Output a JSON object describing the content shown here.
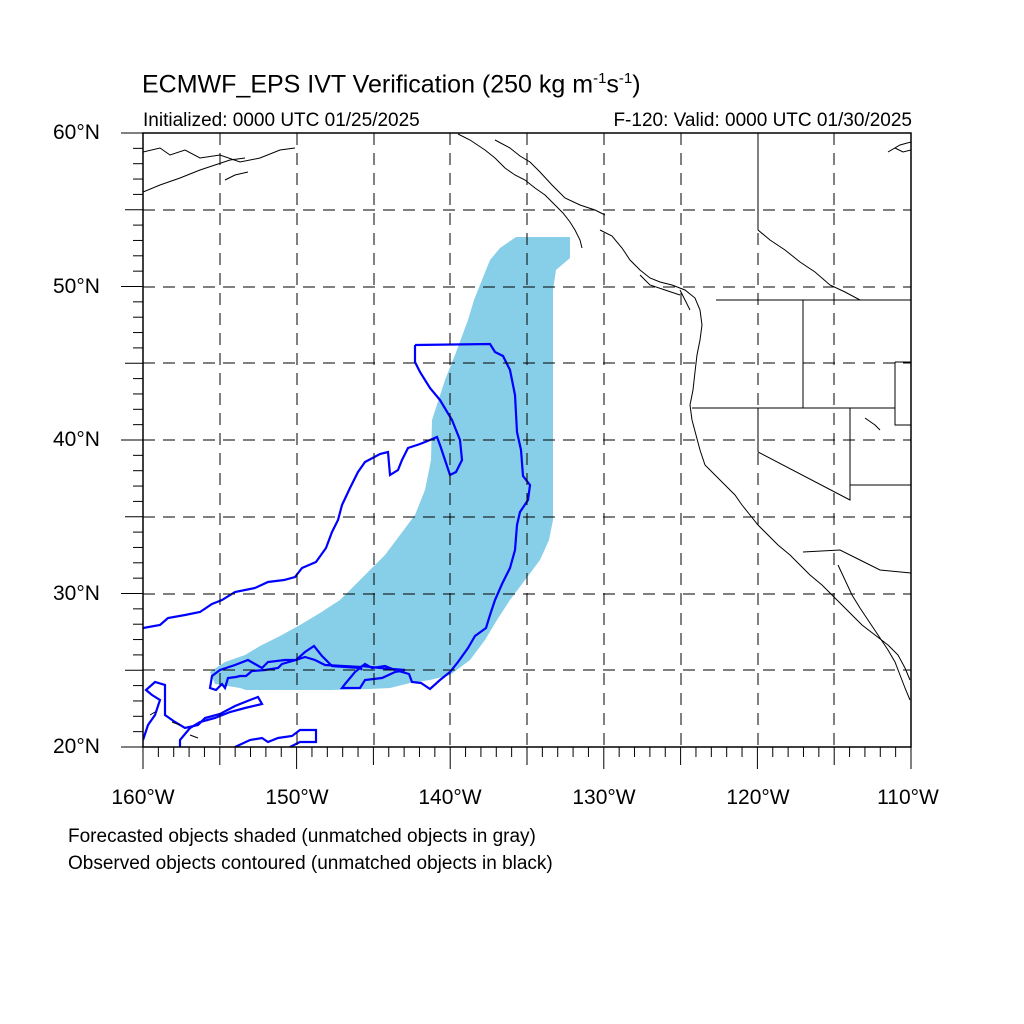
{
  "title": {
    "main": "ECMWF_EPS IVT Verification (250 kg m",
    "sup1": "-1",
    "mid": "s",
    "sup2": "-1",
    "end": ")"
  },
  "subtitle_left": "Initialized: 0000 UTC 01/25/2025",
  "subtitle_right": "F-120: Valid: 0000 UTC 01/30/2025",
  "map": {
    "lon_range": [
      -160,
      -110
    ],
    "lat_range": [
      20,
      60
    ],
    "lat_labels": [
      "60°N",
      "50°N",
      "40°N",
      "30°N",
      "20°N"
    ],
    "lon_labels": [
      "160°W",
      "150°W",
      "140°W",
      "130°W",
      "120°W",
      "110°W"
    ],
    "forecast_fill_color": "#87CEE8",
    "observed_contour_color": "#0000FF",
    "coast_color": "#000000",
    "grid": "dashed every 5 degrees"
  },
  "notes": [
    "Forecasted objects shaded (unmatched objects in gray)",
    "Observed objects contoured (unmatched objects in black)"
  ]
}
